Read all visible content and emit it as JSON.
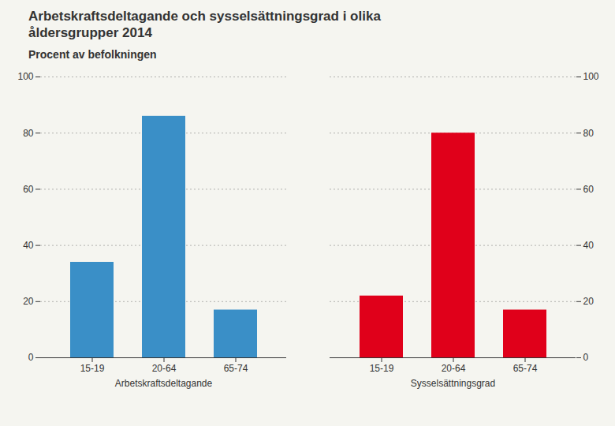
{
  "chart_data": {
    "type": "bar",
    "title": "Arbetskraftsdeltagande och sysselsättningsgrad i olika åldersgrupper 2014",
    "subtitle": "Procent av befolkningen",
    "categories": [
      "15-19",
      "20-64",
      "65-74"
    ],
    "series": [
      {
        "name": "Arbetskraftsdeltagande",
        "color": "#3a8fc7",
        "values": [
          34,
          86,
          17
        ]
      },
      {
        "name": "Sysselsättningsgrad",
        "color": "#e0001a",
        "values": [
          22,
          80,
          17
        ]
      }
    ],
    "ylim": [
      0,
      100
    ],
    "yticks": [
      0,
      20,
      40,
      60,
      80,
      100
    ],
    "y2lim": [
      0,
      100
    ],
    "y2ticks": [
      0,
      20,
      40,
      60,
      80,
      100
    ],
    "grid": true
  }
}
